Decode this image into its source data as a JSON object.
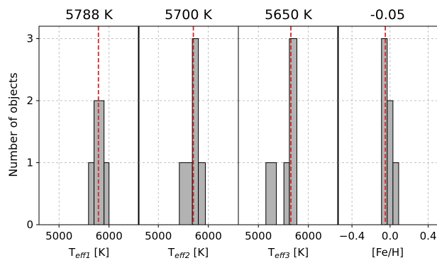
{
  "figure": {
    "ylabel": "Number of objects"
  },
  "chart_data": [
    {
      "type": "bar",
      "title": "5788 K",
      "xlabel_main": "T",
      "xlabel_sub": "eff1",
      "xlabel_unit": " [K]",
      "xlim": [
        4600,
        6600
      ],
      "ylim": [
        0,
        3.2
      ],
      "xticks": [
        5000,
        6000
      ],
      "xtick_labels": [
        "5000",
        "6000"
      ],
      "yticks": [
        0,
        1,
        2,
        3
      ],
      "ytick_labels": [
        "0",
        "1",
        "2",
        "3"
      ],
      "grid": true,
      "bins": [
        {
          "x0": 5590,
          "x1": 5700,
          "count": 1
        },
        {
          "x0": 5700,
          "x1": 5900,
          "count": 2
        },
        {
          "x0": 5900,
          "x1": 6000,
          "count": 1
        }
      ],
      "median": 5788
    },
    {
      "type": "bar",
      "title": "5700 K",
      "xlabel_main": "T",
      "xlabel_sub": "eff2",
      "xlabel_unit": " [K]",
      "xlim": [
        4600,
        6600
      ],
      "ylim": [
        0,
        3.2
      ],
      "xticks": [
        5000,
        6000
      ],
      "xtick_labels": [
        "5000",
        "6000"
      ],
      "grid": true,
      "bins": [
        {
          "x0": 5420,
          "x1": 5680,
          "count": 1
        },
        {
          "x0": 5680,
          "x1": 5800,
          "count": 3
        },
        {
          "x0": 5800,
          "x1": 5940,
          "count": 1
        }
      ],
      "median": 5700
    },
    {
      "type": "bar",
      "title": "5650 K",
      "xlabel_main": "T",
      "xlabel_sub": "eff3",
      "xlabel_unit": " [K]",
      "xlim": [
        4600,
        6600
      ],
      "ylim": [
        0,
        3.2
      ],
      "xticks": [
        5000,
        6000
      ],
      "xtick_labels": [
        "5000",
        "6000"
      ],
      "grid": true,
      "bins": [
        {
          "x0": 5150,
          "x1": 5360,
          "count": 1
        },
        {
          "x0": 5510,
          "x1": 5620,
          "count": 1
        },
        {
          "x0": 5620,
          "x1": 5770,
          "count": 3
        }
      ],
      "median": 5650
    },
    {
      "type": "bar",
      "title": "-0.05",
      "xlabel_main": "[Fe/H]",
      "xlabel_sub": "",
      "xlabel_unit": "",
      "xlim": [
        -0.55,
        0.5
      ],
      "ylim": [
        0,
        3.2
      ],
      "xticks": [
        -0.4,
        0.0,
        0.4
      ],
      "xtick_labels": [
        "−0.4",
        "0.0",
        "0.4"
      ],
      "grid": true,
      "bins": [
        {
          "x0": -0.09,
          "x1": -0.03,
          "count": 3
        },
        {
          "x0": -0.03,
          "x1": 0.03,
          "count": 2
        },
        {
          "x0": 0.03,
          "x1": 0.09,
          "count": 1
        }
      ],
      "median": -0.05
    }
  ]
}
